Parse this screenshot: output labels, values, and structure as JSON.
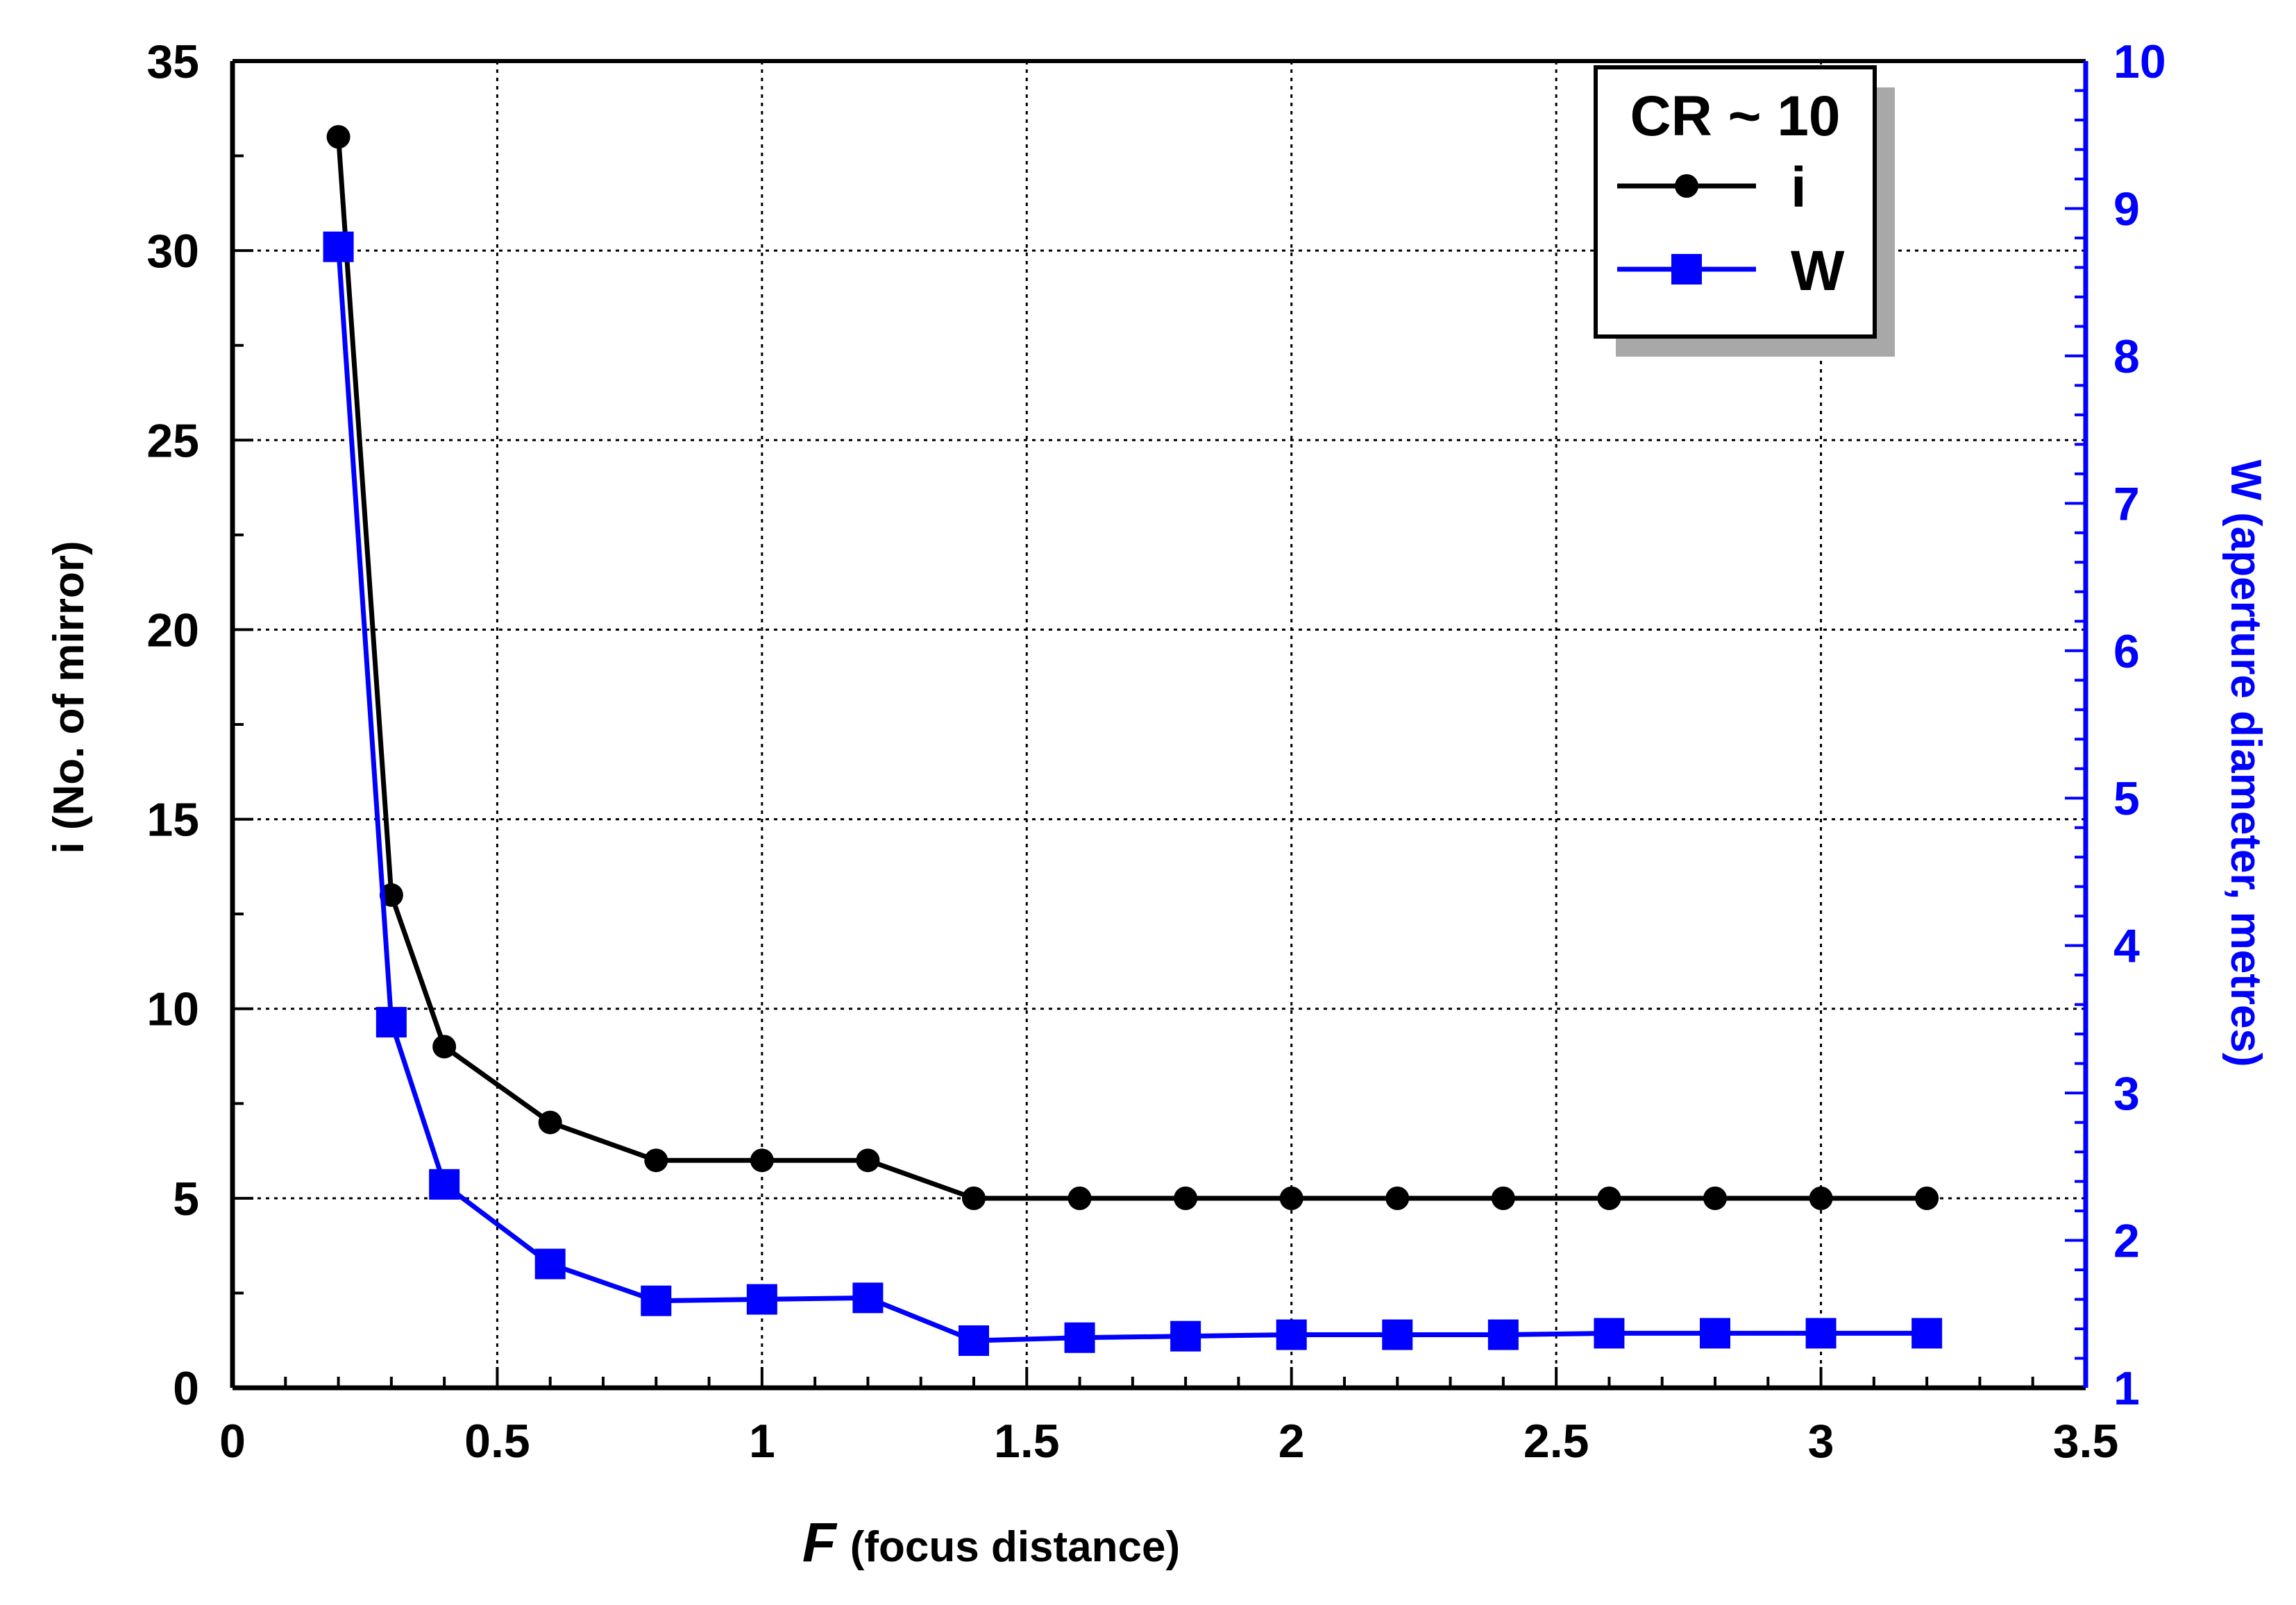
{
  "chart_data": {
    "type": "line",
    "xlabel_symbol": "F",
    "xlabel_text": "(focus distance)",
    "ylabel_left": "i (No. of mirror)",
    "ylabel_right": "W (aperture diameter, metres)",
    "xlim": [
      0,
      3.5
    ],
    "ylim_left": [
      0,
      35
    ],
    "ylim_right": [
      1,
      10
    ],
    "x_ticks": [
      0,
      0.5,
      1,
      1.5,
      2,
      2.5,
      3,
      3.5
    ],
    "x_tick_labels": [
      "0",
      "0.5",
      "1",
      "1.5",
      "2",
      "2.5",
      "3",
      "3.5"
    ],
    "y_left_ticks": [
      0,
      5,
      10,
      15,
      20,
      25,
      30,
      35
    ],
    "y_left_tick_labels": [
      "0",
      "5",
      "10",
      "15",
      "20",
      "25",
      "30",
      "35"
    ],
    "y_right_ticks": [
      1,
      2,
      3,
      4,
      5,
      6,
      7,
      8,
      9,
      10
    ],
    "y_right_tick_labels": [
      "1",
      "2",
      "3",
      "4",
      "5",
      "6",
      "7",
      "8",
      "9",
      "10"
    ],
    "grid": true,
    "legend_position": "top-right",
    "legend_title": "CR ~ 10",
    "series": [
      {
        "name": "i",
        "axis": "left",
        "color": "#000000",
        "marker": "circle",
        "x": [
          0.2,
          0.3,
          0.4,
          0.6,
          0.8,
          1.0,
          1.2,
          1.4,
          1.6,
          1.8,
          2.0,
          2.2,
          2.4,
          2.6,
          2.8,
          3.0,
          3.2
        ],
        "y": [
          33,
          13,
          9,
          7,
          6,
          6,
          6,
          5,
          5,
          5,
          5,
          5,
          5,
          5,
          5,
          5,
          5
        ]
      },
      {
        "name": "W",
        "axis": "right",
        "color": "#0000ff",
        "marker": "square",
        "x": [
          0.2,
          0.3,
          0.4,
          0.6,
          0.8,
          1.0,
          1.2,
          1.4,
          1.6,
          1.8,
          2.0,
          2.2,
          2.4,
          2.6,
          2.8,
          3.0,
          3.2
        ],
        "y": [
          8.74,
          3.48,
          2.38,
          1.84,
          1.59,
          1.6,
          1.61,
          1.32,
          1.34,
          1.35,
          1.36,
          1.36,
          1.36,
          1.37,
          1.37,
          1.37,
          1.37
        ]
      }
    ]
  }
}
